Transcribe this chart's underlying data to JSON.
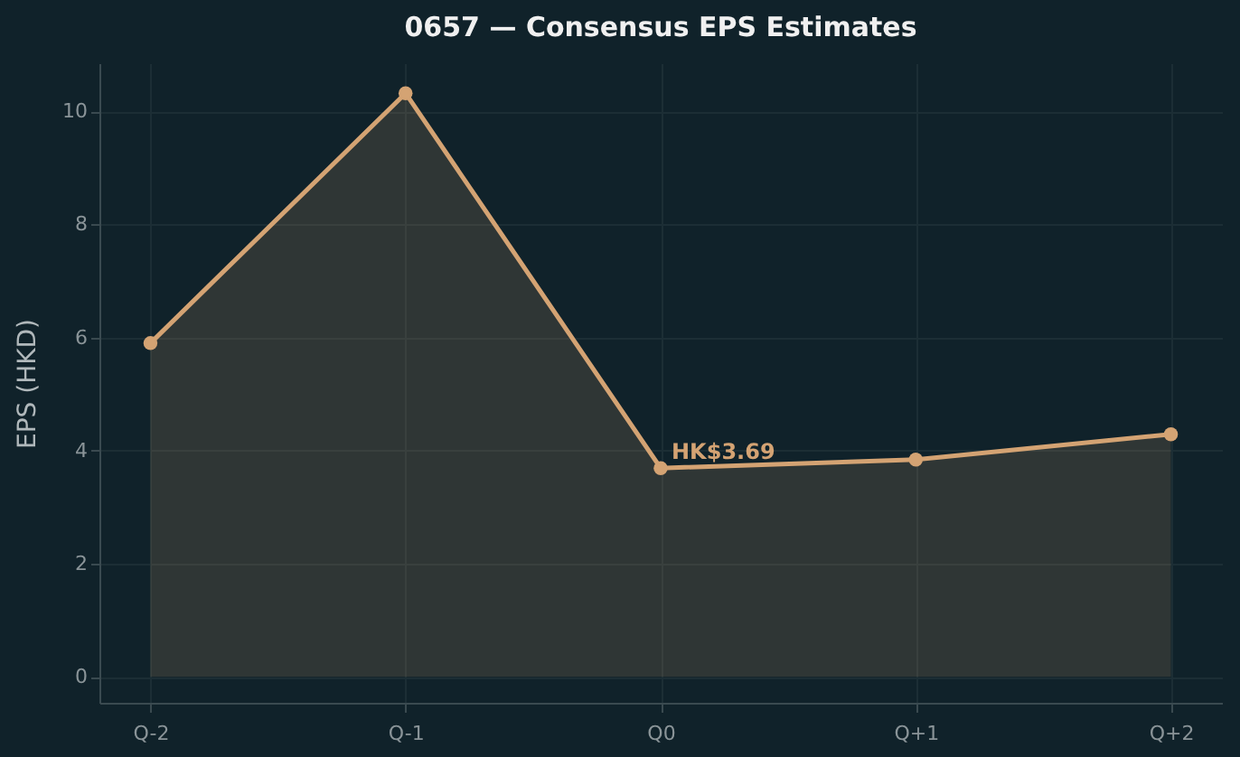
{
  "chart_data": {
    "type": "area",
    "title": "0657 — Consensus EPS Estimates",
    "ylabel": "EPS (HKD)",
    "categories": [
      "Q-2",
      "Q-1",
      "Q0",
      "Q+1",
      "Q+2"
    ],
    "series": [
      {
        "color": "#d4a373",
        "values": [
          5.9,
          10.32,
          3.69,
          3.84,
          4.29
        ]
      }
    ],
    "ylim": [
      -0.46,
      10.85
    ],
    "yticks": [
      0,
      2,
      4,
      6,
      8,
      10
    ],
    "grid": true,
    "marker": "circle",
    "line_style": "solid",
    "annotations": [
      {
        "text": "HK$3.69",
        "x": "Q0",
        "y": 3.69
      }
    ]
  }
}
